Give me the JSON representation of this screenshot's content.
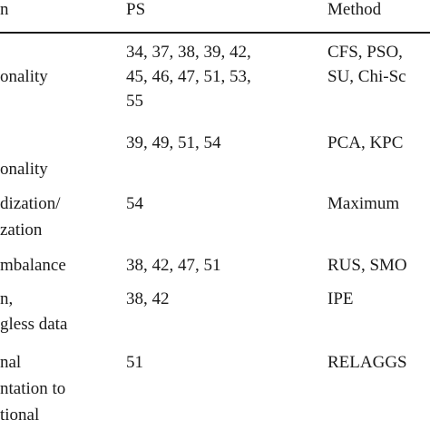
{
  "table": {
    "headers": [
      "n",
      "PS",
      "Method"
    ],
    "rows": [
      {
        "col1": [
          "",
          "onality"
        ],
        "ps": [
          "34, 37, 38, 39, 42,",
          "45, 46, 47, 51, 53,",
          "55"
        ],
        "method": [
          "CFS, PSO,",
          "SU, Chi-Sc"
        ]
      },
      {
        "col1": [
          "",
          "onality"
        ],
        "ps": [
          "39, 49, 51, 54"
        ],
        "method": [
          "PCA, KPC"
        ]
      },
      {
        "col1": [
          "dization/",
          "zation"
        ],
        "ps": [
          "54"
        ],
        "method": [
          "Maximum"
        ]
      },
      {
        "col1": [
          "mbalance"
        ],
        "ps": [
          "38, 42, 47, 51"
        ],
        "method": [
          "RUS, SMO"
        ]
      },
      {
        "col1": [
          "n,",
          "gless data"
        ],
        "ps": [
          "38, 42"
        ],
        "method": [
          "IPE"
        ]
      },
      {
        "col1": [
          "nal",
          "ntation to",
          "tional"
        ],
        "ps": [
          "51"
        ],
        "method": [
          "RELAGGS"
        ]
      }
    ]
  }
}
